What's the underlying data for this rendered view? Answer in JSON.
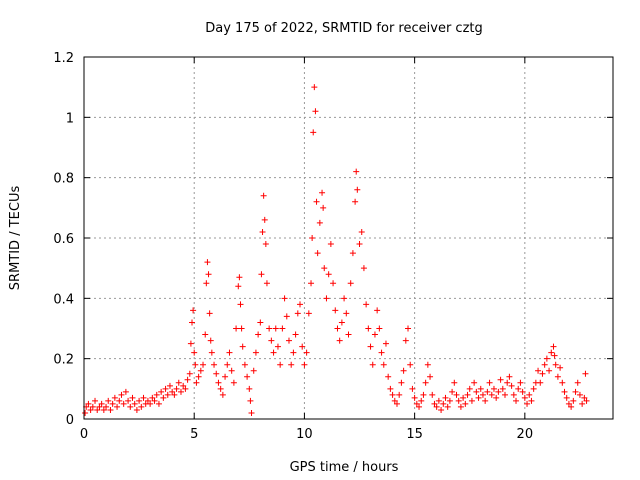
{
  "chart_data": {
    "type": "scatter",
    "title": "Day 175 of 2022, SRMTID for receiver cztg",
    "xlabel": "GPS time / hours",
    "ylabel": "SRMTID / TECUs",
    "xlim": [
      0,
      24
    ],
    "ylim": [
      0,
      1.2
    ],
    "x_ticks": [
      0,
      5,
      10,
      15,
      20
    ],
    "x_tick_labels": [
      "0",
      "5",
      "10",
      "15",
      "20"
    ],
    "y_ticks": [
      0,
      0.2,
      0.4,
      0.6,
      0.8,
      1.0,
      1.2
    ],
    "y_tick_labels": [
      "0",
      "0.2",
      "0.4",
      "0.6",
      "0.8",
      "1",
      "1.2"
    ],
    "grid": true,
    "marker": "+",
    "series": [
      {
        "name": "SRMTID",
        "color": "#ff0000",
        "points": [
          [
            0.05,
            0.02
          ],
          [
            0.1,
            0.04
          ],
          [
            0.2,
            0.05
          ],
          [
            0.3,
            0.03
          ],
          [
            0.4,
            0.04
          ],
          [
            0.5,
            0.06
          ],
          [
            0.6,
            0.03
          ],
          [
            0.7,
            0.04
          ],
          [
            0.8,
            0.05
          ],
          [
            0.9,
            0.03
          ],
          [
            1.0,
            0.04
          ],
          [
            1.1,
            0.06
          ],
          [
            1.2,
            0.03
          ],
          [
            1.3,
            0.05
          ],
          [
            1.4,
            0.07
          ],
          [
            1.5,
            0.04
          ],
          [
            1.6,
            0.06
          ],
          [
            1.7,
            0.08
          ],
          [
            1.8,
            0.05
          ],
          [
            1.9,
            0.09
          ],
          [
            2.0,
            0.06
          ],
          [
            2.1,
            0.04
          ],
          [
            2.2,
            0.07
          ],
          [
            2.3,
            0.05
          ],
          [
            2.4,
            0.03
          ],
          [
            2.5,
            0.06
          ],
          [
            2.6,
            0.04
          ],
          [
            2.7,
            0.07
          ],
          [
            2.8,
            0.05
          ],
          [
            2.9,
            0.06
          ],
          [
            3.0,
            0.05
          ],
          [
            3.1,
            0.07
          ],
          [
            3.2,
            0.06
          ],
          [
            3.3,
            0.08
          ],
          [
            3.4,
            0.05
          ],
          [
            3.5,
            0.09
          ],
          [
            3.6,
            0.07
          ],
          [
            3.7,
            0.1
          ],
          [
            3.8,
            0.08
          ],
          [
            3.9,
            0.11
          ],
          [
            4.0,
            0.09
          ],
          [
            4.1,
            0.08
          ],
          [
            4.2,
            0.1
          ],
          [
            4.3,
            0.12
          ],
          [
            4.4,
            0.09
          ],
          [
            4.5,
            0.11
          ],
          [
            4.6,
            0.1
          ],
          [
            4.7,
            0.13
          ],
          [
            4.8,
            0.15
          ],
          [
            4.85,
            0.25
          ],
          [
            4.9,
            0.32
          ],
          [
            4.95,
            0.36
          ],
          [
            5.0,
            0.22
          ],
          [
            5.05,
            0.18
          ],
          [
            5.1,
            0.12
          ],
          [
            5.2,
            0.14
          ],
          [
            5.3,
            0.16
          ],
          [
            5.4,
            0.18
          ],
          [
            5.5,
            0.28
          ],
          [
            5.55,
            0.45
          ],
          [
            5.6,
            0.52
          ],
          [
            5.65,
            0.48
          ],
          [
            5.7,
            0.35
          ],
          [
            5.75,
            0.26
          ],
          [
            5.8,
            0.22
          ],
          [
            5.9,
            0.18
          ],
          [
            6.0,
            0.15
          ],
          [
            6.1,
            0.12
          ],
          [
            6.2,
            0.1
          ],
          [
            6.3,
            0.08
          ],
          [
            6.4,
            0.14
          ],
          [
            6.5,
            0.18
          ],
          [
            6.6,
            0.22
          ],
          [
            6.7,
            0.16
          ],
          [
            6.8,
            0.12
          ],
          [
            6.9,
            0.3
          ],
          [
            7.0,
            0.44
          ],
          [
            7.05,
            0.47
          ],
          [
            7.1,
            0.38
          ],
          [
            7.15,
            0.3
          ],
          [
            7.2,
            0.24
          ],
          [
            7.3,
            0.18
          ],
          [
            7.4,
            0.14
          ],
          [
            7.5,
            0.1
          ],
          [
            7.55,
            0.06
          ],
          [
            7.6,
            0.02
          ],
          [
            7.7,
            0.16
          ],
          [
            7.8,
            0.22
          ],
          [
            7.9,
            0.28
          ],
          [
            8.0,
            0.32
          ],
          [
            8.05,
            0.48
          ],
          [
            8.1,
            0.62
          ],
          [
            8.15,
            0.74
          ],
          [
            8.2,
            0.66
          ],
          [
            8.25,
            0.58
          ],
          [
            8.3,
            0.45
          ],
          [
            8.4,
            0.3
          ],
          [
            8.5,
            0.26
          ],
          [
            8.6,
            0.22
          ],
          [
            8.7,
            0.3
          ],
          [
            8.8,
            0.24
          ],
          [
            8.9,
            0.18
          ],
          [
            9.0,
            0.3
          ],
          [
            9.1,
            0.4
          ],
          [
            9.2,
            0.34
          ],
          [
            9.3,
            0.26
          ],
          [
            9.4,
            0.18
          ],
          [
            9.5,
            0.22
          ],
          [
            9.6,
            0.28
          ],
          [
            9.7,
            0.35
          ],
          [
            9.8,
            0.38
          ],
          [
            9.9,
            0.24
          ],
          [
            10.0,
            0.18
          ],
          [
            10.1,
            0.22
          ],
          [
            10.2,
            0.35
          ],
          [
            10.3,
            0.45
          ],
          [
            10.35,
            0.6
          ],
          [
            10.4,
            0.95
          ],
          [
            10.45,
            1.1
          ],
          [
            10.5,
            1.02
          ],
          [
            10.55,
            0.72
          ],
          [
            10.6,
            0.55
          ],
          [
            10.7,
            0.65
          ],
          [
            10.8,
            0.75
          ],
          [
            10.85,
            0.7
          ],
          [
            10.9,
            0.5
          ],
          [
            11.0,
            0.4
          ],
          [
            11.1,
            0.48
          ],
          [
            11.2,
            0.58
          ],
          [
            11.3,
            0.45
          ],
          [
            11.4,
            0.36
          ],
          [
            11.5,
            0.3
          ],
          [
            11.6,
            0.26
          ],
          [
            11.7,
            0.32
          ],
          [
            11.8,
            0.4
          ],
          [
            11.9,
            0.35
          ],
          [
            12.0,
            0.28
          ],
          [
            12.1,
            0.45
          ],
          [
            12.2,
            0.55
          ],
          [
            12.3,
            0.72
          ],
          [
            12.35,
            0.82
          ],
          [
            12.4,
            0.76
          ],
          [
            12.5,
            0.58
          ],
          [
            12.6,
            0.62
          ],
          [
            12.7,
            0.5
          ],
          [
            12.8,
            0.38
          ],
          [
            12.9,
            0.3
          ],
          [
            13.0,
            0.24
          ],
          [
            13.1,
            0.18
          ],
          [
            13.2,
            0.28
          ],
          [
            13.3,
            0.36
          ],
          [
            13.4,
            0.3
          ],
          [
            13.5,
            0.22
          ],
          [
            13.6,
            0.18
          ],
          [
            13.7,
            0.25
          ],
          [
            13.8,
            0.14
          ],
          [
            13.9,
            0.1
          ],
          [
            14.0,
            0.08
          ],
          [
            14.1,
            0.06
          ],
          [
            14.2,
            0.05
          ],
          [
            14.3,
            0.08
          ],
          [
            14.4,
            0.12
          ],
          [
            14.5,
            0.16
          ],
          [
            14.6,
            0.26
          ],
          [
            14.7,
            0.3
          ],
          [
            14.8,
            0.18
          ],
          [
            14.9,
            0.1
          ],
          [
            15.0,
            0.07
          ],
          [
            15.1,
            0.05
          ],
          [
            15.2,
            0.04
          ],
          [
            15.3,
            0.06
          ],
          [
            15.4,
            0.08
          ],
          [
            15.5,
            0.12
          ],
          [
            15.6,
            0.18
          ],
          [
            15.7,
            0.14
          ],
          [
            15.8,
            0.08
          ],
          [
            15.9,
            0.05
          ],
          [
            16.0,
            0.04
          ],
          [
            16.1,
            0.06
          ],
          [
            16.2,
            0.03
          ],
          [
            16.3,
            0.05
          ],
          [
            16.4,
            0.07
          ],
          [
            16.5,
            0.04
          ],
          [
            16.6,
            0.06
          ],
          [
            16.7,
            0.09
          ],
          [
            16.8,
            0.12
          ],
          [
            16.9,
            0.08
          ],
          [
            17.0,
            0.06
          ],
          [
            17.1,
            0.04
          ],
          [
            17.2,
            0.07
          ],
          [
            17.3,
            0.05
          ],
          [
            17.4,
            0.08
          ],
          [
            17.5,
            0.1
          ],
          [
            17.6,
            0.06
          ],
          [
            17.7,
            0.12
          ],
          [
            17.8,
            0.09
          ],
          [
            17.9,
            0.07
          ],
          [
            18.0,
            0.1
          ],
          [
            18.1,
            0.08
          ],
          [
            18.2,
            0.06
          ],
          [
            18.3,
            0.09
          ],
          [
            18.4,
            0.12
          ],
          [
            18.5,
            0.08
          ],
          [
            18.6,
            0.1
          ],
          [
            18.7,
            0.07
          ],
          [
            18.8,
            0.09
          ],
          [
            18.9,
            0.13
          ],
          [
            19.0,
            0.1
          ],
          [
            19.1,
            0.08
          ],
          [
            19.2,
            0.12
          ],
          [
            19.3,
            0.14
          ],
          [
            19.4,
            0.11
          ],
          [
            19.5,
            0.08
          ],
          [
            19.6,
            0.06
          ],
          [
            19.7,
            0.1
          ],
          [
            19.8,
            0.12
          ],
          [
            19.9,
            0.09
          ],
          [
            20.0,
            0.07
          ],
          [
            20.1,
            0.05
          ],
          [
            20.2,
            0.08
          ],
          [
            20.3,
            0.06
          ],
          [
            20.4,
            0.1
          ],
          [
            20.5,
            0.12
          ],
          [
            20.6,
            0.16
          ],
          [
            20.7,
            0.12
          ],
          [
            20.8,
            0.15
          ],
          [
            20.9,
            0.18
          ],
          [
            21.0,
            0.2
          ],
          [
            21.1,
            0.16
          ],
          [
            21.2,
            0.22
          ],
          [
            21.3,
            0.24
          ],
          [
            21.35,
            0.21
          ],
          [
            21.4,
            0.18
          ],
          [
            21.5,
            0.14
          ],
          [
            21.6,
            0.17
          ],
          [
            21.7,
            0.12
          ],
          [
            21.8,
            0.09
          ],
          [
            21.9,
            0.07
          ],
          [
            22.0,
            0.05
          ],
          [
            22.1,
            0.04
          ],
          [
            22.2,
            0.06
          ],
          [
            22.3,
            0.09
          ],
          [
            22.4,
            0.12
          ],
          [
            22.5,
            0.08
          ],
          [
            22.6,
            0.05
          ],
          [
            22.7,
            0.07
          ],
          [
            22.75,
            0.15
          ],
          [
            22.8,
            0.06
          ]
        ]
      }
    ]
  }
}
